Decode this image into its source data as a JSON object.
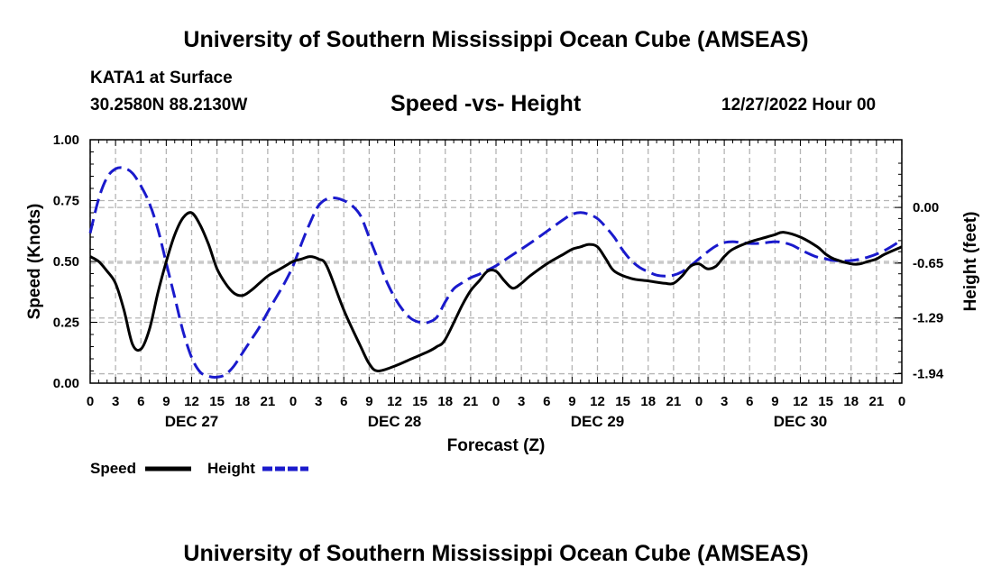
{
  "header": {
    "title": "University of Southern Mississippi Ocean Cube (AMSEAS)",
    "station": "KATA1 at Surface",
    "location": "30.2580N  88.2130W",
    "datetime": "12/27/2022 Hour 00",
    "footer_title": "University of Southern Mississippi Ocean Cube (AMSEAS)"
  },
  "chart_data": {
    "type": "line",
    "title": "Speed -vs- Height",
    "xlabel": "Forecast (Z)",
    "ylabel": "Speed (Knots)",
    "y2label": "Height (feet)",
    "xlim": [
      0,
      96
    ],
    "ylim": [
      0,
      1
    ],
    "y2lim": [
      -2.05,
      0.79
    ],
    "x_tick_labels": [
      "0",
      "3",
      "6",
      "9",
      "12",
      "15",
      "18",
      "21",
      "0",
      "3",
      "6",
      "9",
      "12",
      "15",
      "18",
      "21",
      "0",
      "3",
      "6",
      "9",
      "12",
      "15",
      "18",
      "21",
      "0",
      "3",
      "6",
      "9",
      "12",
      "15",
      "18",
      "21",
      "0"
    ],
    "day_labels": [
      {
        "x": 12,
        "label": "DEC 27"
      },
      {
        "x": 36,
        "label": "DEC 28"
      },
      {
        "x": 60,
        "label": "DEC 29"
      },
      {
        "x": 84,
        "label": "DEC 30"
      }
    ],
    "y_ticks": [
      "0.00",
      "0.25",
      "0.50",
      "0.75",
      "1.00"
    ],
    "y_tick_values": [
      0,
      0.25,
      0.5,
      0.75,
      1.0
    ],
    "y2_ticks": [
      "-1.94",
      "-1.29",
      "-0.65",
      "0.00"
    ],
    "y2_tick_values": [
      -1.94,
      -1.29,
      -0.65,
      0.0
    ],
    "grid": true,
    "legend": [
      {
        "name": "Speed",
        "color": "#000000",
        "style": "solid"
      },
      {
        "name": "Height",
        "color": "#1a1acc",
        "style": "dashed"
      }
    ],
    "series": [
      {
        "name": "Speed",
        "axis": "left",
        "color": "#000000",
        "x": [
          0,
          1,
          2,
          3,
          4,
          5,
          6,
          7,
          8,
          9,
          10,
          11,
          12,
          13,
          14,
          15,
          16,
          17,
          18,
          19,
          20,
          21,
          22,
          23,
          24,
          25,
          26,
          27,
          28,
          30,
          32,
          33,
          34,
          36,
          38,
          40,
          41,
          42,
          44,
          45,
          46,
          47,
          48,
          49,
          50,
          51,
          52,
          54,
          56,
          57,
          58,
          59,
          60,
          61,
          62,
          64,
          66,
          68,
          69,
          70,
          71,
          72,
          73,
          74,
          75,
          76,
          78,
          80,
          81,
          82,
          84,
          86,
          87,
          88,
          90,
          91,
          92,
          93,
          94,
          96
        ],
        "values": [
          0.52,
          0.5,
          0.46,
          0.41,
          0.3,
          0.16,
          0.14,
          0.22,
          0.37,
          0.5,
          0.61,
          0.68,
          0.7,
          0.65,
          0.57,
          0.47,
          0.41,
          0.37,
          0.36,
          0.38,
          0.41,
          0.44,
          0.46,
          0.48,
          0.5,
          0.51,
          0.52,
          0.51,
          0.48,
          0.3,
          0.15,
          0.08,
          0.05,
          0.07,
          0.1,
          0.13,
          0.15,
          0.18,
          0.32,
          0.38,
          0.42,
          0.46,
          0.46,
          0.42,
          0.39,
          0.41,
          0.44,
          0.49,
          0.53,
          0.55,
          0.56,
          0.57,
          0.56,
          0.51,
          0.46,
          0.43,
          0.42,
          0.41,
          0.41,
          0.44,
          0.48,
          0.49,
          0.47,
          0.48,
          0.52,
          0.55,
          0.58,
          0.6,
          0.61,
          0.62,
          0.6,
          0.56,
          0.53,
          0.51,
          0.49,
          0.49,
          0.5,
          0.51,
          0.53,
          0.56
        ]
      },
      {
        "name": "Height",
        "axis": "right",
        "color": "#1a1acc",
        "x": [
          0,
          1,
          2,
          3,
          4,
          5,
          6,
          7,
          8,
          9,
          10,
          11,
          12,
          13,
          14,
          15,
          16,
          17,
          18,
          19,
          20,
          21,
          22,
          23,
          24,
          25,
          26,
          27,
          28,
          29,
          30,
          31,
          32,
          33,
          34,
          35,
          36,
          37,
          38,
          39,
          40,
          41,
          42,
          43,
          44,
          45,
          46,
          47,
          48,
          50,
          52,
          54,
          56,
          57,
          58,
          59,
          60,
          61,
          62,
          63,
          64,
          65,
          66,
          67,
          68,
          69,
          70,
          71,
          72,
          73,
          74,
          75,
          76,
          77,
          78,
          79,
          80,
          81,
          82,
          83,
          84,
          85,
          86,
          87,
          88,
          90,
          92,
          94,
          96
        ],
        "values": [
          -0.3,
          0.1,
          0.35,
          0.45,
          0.46,
          0.4,
          0.25,
          0.05,
          -0.25,
          -0.65,
          -1.05,
          -1.45,
          -1.75,
          -1.92,
          -1.97,
          -1.98,
          -1.95,
          -1.85,
          -1.7,
          -1.55,
          -1.4,
          -1.22,
          -1.05,
          -0.88,
          -0.68,
          -0.42,
          -0.18,
          0.02,
          0.1,
          0.11,
          0.08,
          0.02,
          -0.1,
          -0.35,
          -0.6,
          -0.85,
          -1.05,
          -1.2,
          -1.3,
          -1.34,
          -1.34,
          -1.28,
          -1.1,
          -0.95,
          -0.88,
          -0.82,
          -0.78,
          -0.73,
          -0.68,
          -0.55,
          -0.42,
          -0.28,
          -0.14,
          -0.08,
          -0.06,
          -0.08,
          -0.13,
          -0.23,
          -0.35,
          -0.5,
          -0.62,
          -0.7,
          -0.75,
          -0.79,
          -0.8,
          -0.79,
          -0.75,
          -0.68,
          -0.6,
          -0.52,
          -0.45,
          -0.41,
          -0.4,
          -0.41,
          -0.42,
          -0.42,
          -0.41,
          -0.4,
          -0.41,
          -0.44,
          -0.49,
          -0.54,
          -0.58,
          -0.6,
          -0.62,
          -0.62,
          -0.58,
          -0.5,
          -0.38
        ]
      }
    ]
  }
}
